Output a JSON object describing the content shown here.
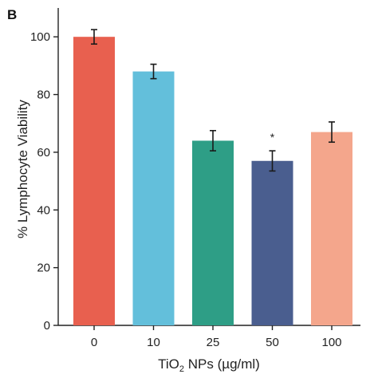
{
  "panel_label": "B",
  "chart_data": {
    "type": "bar",
    "categories": [
      "0",
      "10",
      "25",
      "50",
      "100"
    ],
    "values": [
      100,
      88,
      64,
      57,
      67
    ],
    "errors": [
      2.5,
      2.5,
      3.5,
      3.5,
      3.5
    ],
    "colors": [
      "#e8604f",
      "#63bfdb",
      "#2e9e86",
      "#4a5e8f",
      "#f4a68c"
    ],
    "annotations": [
      {
        "category": "50",
        "text": "*"
      }
    ],
    "ylabel": "% Lymphocyte Viability",
    "xlabel_main": "TiO",
    "xlabel_sub": "2",
    "xlabel_rest": " NPs (µg/ml)",
    "ylim": [
      0,
      110
    ],
    "yticks": [
      0,
      20,
      40,
      60,
      80,
      100
    ],
    "grid": false
  }
}
